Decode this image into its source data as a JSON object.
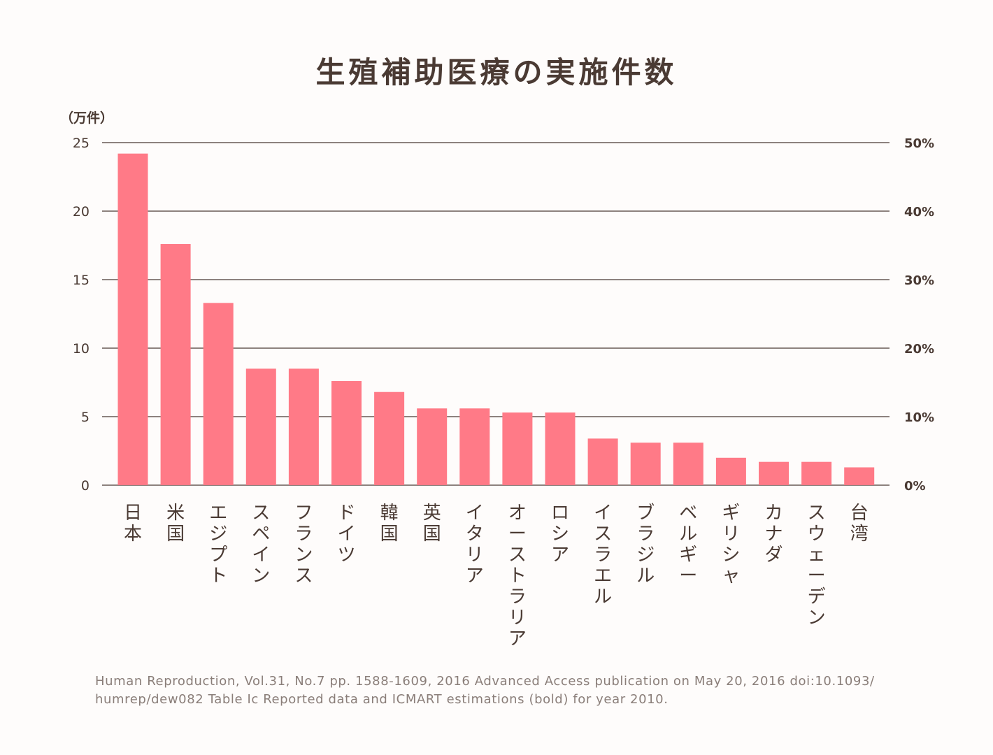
{
  "title": "生殖補助医療の実施件数",
  "source_note": "Human Reproduction, Vol.31, No.7 pp. 1588-1609, 2016 Advanced Access publication on May 20, 2016 doi:10.1093/ humrep/dew082 Table Ic Reported data and ICMART estimations (bold) for year 2010.",
  "colors": {
    "bar": "#ff7a87",
    "grid": "#4a3a33",
    "text": "#4a3a33",
    "note": "#8a7e79",
    "background": "#fefcfb"
  },
  "chart_data": {
    "type": "bar",
    "title": "生殖補助医療の実施件数",
    "ylabel": "（万件）",
    "ylim": [
      0,
      25
    ],
    "y_ticks": [
      "0",
      "5",
      "10",
      "15",
      "20",
      "25"
    ],
    "y2_ticks": [
      "0%",
      "10%",
      "20%",
      "30%",
      "40%",
      "50%"
    ],
    "grid": true,
    "categories": [
      "日本",
      "米国",
      "エジプト",
      "スペイン",
      "フランス",
      "ドイツ",
      "韓国",
      "英国",
      "イタリア",
      "オーストラリア",
      "ロシア",
      "イスラエル",
      "ブラジル",
      "ベルギー",
      "ギリシャ",
      "カナダ",
      "スウェーデン",
      "台湾"
    ],
    "values": [
      24.2,
      17.6,
      13.3,
      8.5,
      8.5,
      7.6,
      6.8,
      5.6,
      5.6,
      5.3,
      5.3,
      3.4,
      3.1,
      3.1,
      2.0,
      1.7,
      1.7,
      1.3
    ]
  }
}
